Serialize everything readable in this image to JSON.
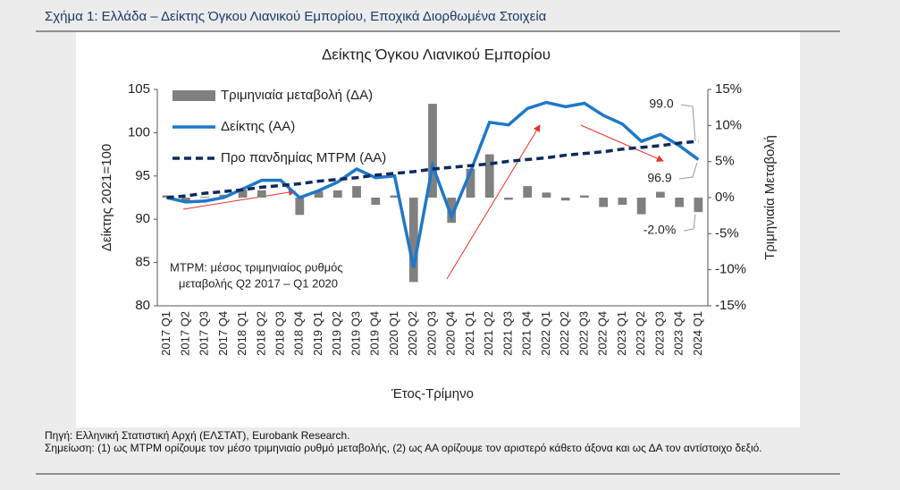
{
  "header": {
    "title": "Σχήμα 1: Ελλάδα – Δείκτης Όγκου Λιανικού Εμπορίου, Εποχικά Διορθωμένα Στοιχεία"
  },
  "chart_data": {
    "type": "combo",
    "title": "Δείκτης Όγκου Λιανικού Εμπορίου",
    "y_label": "Δείκτης 2021=100",
    "y2_label": "Τριμηνιαία Μεταβολή",
    "x_label": "Έτος-Τρίμηνο",
    "categories": [
      "2017 Q1",
      "2017 Q2",
      "2017 Q3",
      "2017 Q4",
      "2018 Q1",
      "2018 Q2",
      "2018 Q3",
      "2018 Q4",
      "2019 Q1",
      "2019 Q2",
      "2019 Q3",
      "2019 Q4",
      "2020 Q1",
      "2020 Q2",
      "2020 Q3",
      "2020 Q4",
      "2021 Q1",
      "2021 Q2",
      "2021 Q3",
      "2021 Q4",
      "2022 Q1",
      "2022 Q2",
      "2022 Q3",
      "2022 Q4",
      "2023 Q1",
      "2023 Q2",
      "2023 Q3",
      "2023 Q4",
      "2024 Q1"
    ],
    "series": [
      {
        "name": "Τριμηνιαία μεταβολή (ΔΑ)",
        "type": "bar",
        "axis": "y2",
        "color": "#808080",
        "values": [
          0.3,
          -0.5,
          0.1,
          0.4,
          1.1,
          1.0,
          0.0,
          -2.4,
          0.9,
          1.0,
          1.6,
          -1.0,
          0.3,
          -11.7,
          13.0,
          -3.5,
          4.0,
          6.0,
          -0.3,
          1.6,
          0.7,
          -0.4,
          0.3,
          -1.3,
          -1.0,
          -2.3,
          0.8,
          -1.3,
          -2.0
        ]
      },
      {
        "name": "Δείκτης (ΑΑ)",
        "type": "line",
        "color": "#1f78c8",
        "values": [
          92.5,
          92.0,
          92.1,
          92.5,
          93.5,
          94.5,
          94.5,
          92.5,
          93.3,
          94.3,
          95.8,
          94.8,
          95.0,
          84.4,
          96.2,
          90.3,
          95.5,
          101.2,
          100.9,
          102.8,
          103.5,
          103.0,
          103.4,
          102.0,
          101.0,
          99.0,
          99.8,
          98.5,
          96.9
        ]
      },
      {
        "name": "Προ πανδημίας ΜΤΡΜ (ΑΑ)",
        "type": "line",
        "dashed": true,
        "color": "#0e2a5c",
        "values": [
          92.5,
          92.7,
          93.0,
          93.2,
          93.4,
          93.7,
          93.9,
          94.1,
          94.4,
          94.6,
          94.8,
          95.1,
          95.3,
          95.5,
          95.8,
          96.0,
          96.2,
          96.4,
          96.7,
          96.9,
          97.1,
          97.4,
          97.6,
          97.8,
          98.1,
          98.3,
          98.5,
          98.8,
          99.0
        ]
      }
    ],
    "ylim": [
      80,
      105
    ],
    "yticks": [
      80,
      85,
      90,
      95,
      100,
      105
    ],
    "y2lim": [
      -15,
      15
    ],
    "y2ticks": [
      {
        "value": -15,
        "label": "-15%"
      },
      {
        "value": -10,
        "label": "-10%"
      },
      {
        "value": -5,
        "label": "-5%"
      },
      {
        "value": 0,
        "label": "0%"
      },
      {
        "value": 5,
        "label": "5%"
      },
      {
        "value": 10,
        "label": "10%"
      },
      {
        "value": 15,
        "label": "15%"
      }
    ],
    "annotations": [
      "99.0",
      "96.9",
      "-2.0%"
    ],
    "note": [
      "ΜΤΡΜ: μέσος τριμηνιαίος ρυθμός",
      "μεταβολής Q2 2017 – Q1 2020"
    ]
  },
  "footer": {
    "source": "Πηγή: Ελληνική Στατιστική Αρχή (ΕΛΣΤΑΤ), Eurobank Research.",
    "note": "Σημείωση: (1) ως ΜΤΡΜ ορίζουμε τον μέσο τριμηνιαίο ρυθμό μεταβολής, (2) ως ΑΑ ορίζουμε τον αριστερό κάθετο άξονα και ως ΔΑ τον αντίστοιχο δεξιό."
  }
}
